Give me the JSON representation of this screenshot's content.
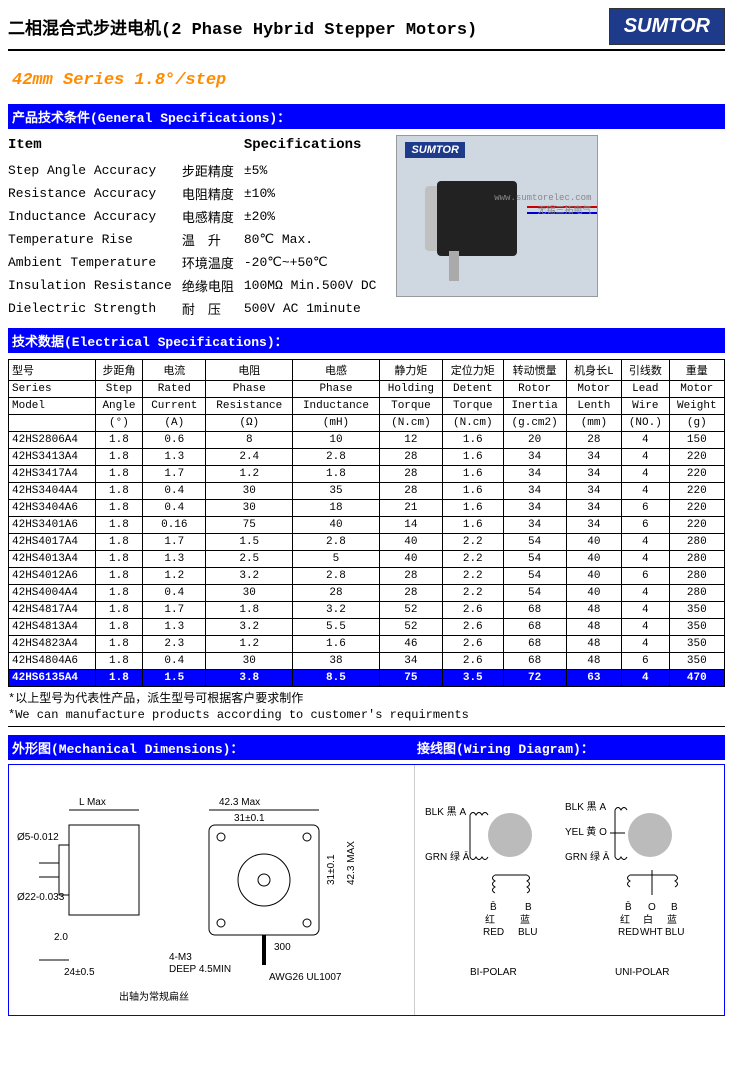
{
  "header": {
    "title_cn": "二相混合式步进电机",
    "title_en": "(2 Phase Hybrid Stepper Motors)",
    "logo": "SUMTOR"
  },
  "series_bar": "42mm Series 1.8°/step",
  "sections": {
    "general": "产品技术条件(General Specifications)：",
    "electrical": "技术数据(Electrical Specifications)：",
    "mech": "外形图(Mechanical Dimensions)：",
    "wiring": "接线图(Wiring Diagram)："
  },
  "general_head": {
    "item": "Item",
    "spec": "Specifications"
  },
  "general": [
    {
      "en": "Step Angle Accuracy",
      "cn": "步距精度",
      "val": "±5%"
    },
    {
      "en": "Resistance Accuracy",
      "cn": "电阻精度",
      "val": "±10%"
    },
    {
      "en": "Inductance Accuracy",
      "cn": "电感精度",
      "val": "±20%"
    },
    {
      "en": "Temperature Rise",
      "cn": "温　升",
      "val": "80℃ Max."
    },
    {
      "en": "Ambient Temperature",
      "cn": "环境温度",
      "val": "-20℃~+50℃"
    },
    {
      "en": "Insulation Resistance",
      "cn": "绝缘电阻",
      "val": "100MΩ Min.500V DC"
    },
    {
      "en": "Dielectric Strength",
      "cn": "耐　压",
      "val": "500V AC 1minute"
    }
  ],
  "product_img": {
    "logo": "SUMTOR",
    "wm1": "www.sumtorelec.com",
    "wm2": "无锡三拓电气"
  },
  "columns": [
    {
      "cn": "型号",
      "en1": "Series",
      "en2": "Model",
      "unit": ""
    },
    {
      "cn": "步距角",
      "en1": "Step",
      "en2": "Angle",
      "unit": "(°)"
    },
    {
      "cn": "电流",
      "en1": "Rated",
      "en2": "Current",
      "unit": "(A)"
    },
    {
      "cn": "电阻",
      "en1": "Phase",
      "en2": "Resistance",
      "unit": "(Ω)"
    },
    {
      "cn": "电感",
      "en1": "Phase",
      "en2": "Inductance",
      "unit": "(mH)"
    },
    {
      "cn": "静力矩",
      "en1": "Holding",
      "en2": "Torque",
      "unit": "(N.cm)"
    },
    {
      "cn": "定位力矩",
      "en1": "Detent",
      "en2": "Torque",
      "unit": "(N.cm)"
    },
    {
      "cn": "转动惯量",
      "en1": "Rotor",
      "en2": "Inertia",
      "unit": "(g.cm2)"
    },
    {
      "cn": "机身长L",
      "en1": "Motor",
      "en2": "Lenth",
      "unit": "(mm)"
    },
    {
      "cn": "引线数",
      "en1": "Lead",
      "en2": "Wire",
      "unit": "(NO.)"
    },
    {
      "cn": "重量",
      "en1": "Motor",
      "en2": "Weight",
      "unit": "(g)"
    }
  ],
  "rows": [
    [
      "42HS2806A4",
      "1.8",
      "0.6",
      "8",
      "10",
      "12",
      "1.6",
      "20",
      "28",
      "4",
      "150"
    ],
    [
      "42HS3413A4",
      "1.8",
      "1.3",
      "2.4",
      "2.8",
      "28",
      "1.6",
      "34",
      "34",
      "4",
      "220"
    ],
    [
      "42HS3417A4",
      "1.8",
      "1.7",
      "1.2",
      "1.8",
      "28",
      "1.6",
      "34",
      "34",
      "4",
      "220"
    ],
    [
      "42HS3404A4",
      "1.8",
      "0.4",
      "30",
      "35",
      "28",
      "1.6",
      "34",
      "34",
      "4",
      "220"
    ],
    [
      "42HS3404A6",
      "1.8",
      "0.4",
      "30",
      "18",
      "21",
      "1.6",
      "34",
      "34",
      "6",
      "220"
    ],
    [
      "42HS3401A6",
      "1.8",
      "0.16",
      "75",
      "40",
      "14",
      "1.6",
      "34",
      "34",
      "6",
      "220"
    ],
    [
      "42HS4017A4",
      "1.8",
      "1.7",
      "1.5",
      "2.8",
      "40",
      "2.2",
      "54",
      "40",
      "4",
      "280"
    ],
    [
      "42HS4013A4",
      "1.8",
      "1.3",
      "2.5",
      "5",
      "40",
      "2.2",
      "54",
      "40",
      "4",
      "280"
    ],
    [
      "42HS4012A6",
      "1.8",
      "1.2",
      "3.2",
      "2.8",
      "28",
      "2.2",
      "54",
      "40",
      "6",
      "280"
    ],
    [
      "42HS4004A4",
      "1.8",
      "0.4",
      "30",
      "28",
      "28",
      "2.2",
      "54",
      "40",
      "4",
      "280"
    ],
    [
      "42HS4817A4",
      "1.8",
      "1.7",
      "1.8",
      "3.2",
      "52",
      "2.6",
      "68",
      "48",
      "4",
      "350"
    ],
    [
      "42HS4813A4",
      "1.8",
      "1.3",
      "3.2",
      "5.5",
      "52",
      "2.6",
      "68",
      "48",
      "4",
      "350"
    ],
    [
      "42HS4823A4",
      "1.8",
      "2.3",
      "1.2",
      "1.6",
      "46",
      "2.6",
      "68",
      "48",
      "4",
      "350"
    ],
    [
      "42HS4804A6",
      "1.8",
      "0.4",
      "30",
      "38",
      "34",
      "2.6",
      "68",
      "48",
      "6",
      "350"
    ]
  ],
  "row_hi": [
    "42HS6135A4",
    "1.8",
    "1.5",
    "3.8",
    "8.5",
    "75",
    "3.5",
    "72",
    "63",
    "4",
    "470"
  ],
  "notes": {
    "cn": "*以上型号为代表性产品，派生型号可根据客户要求制作",
    "en": "*We can manufacture products according to customer's requirments"
  },
  "mech": {
    "lmax": "L Max",
    "d5": "Ø5-0.012",
    "d22": "Ø22-0.033",
    "t2": "2.0",
    "t24": "24±0.5",
    "t423": "42.3 Max",
    "t31": "31±0.1",
    "t310": "31±0.1",
    "t423v": "42.3 MAX",
    "m3": "4-M3",
    "deep": "DEEP 4.5MIN",
    "t300": "300",
    "awg": "AWG26 UL1007",
    "shaft_note": "出轴为常规扁丝"
  },
  "wiring": {
    "blk": "BLK 黑 A",
    "blk2": "BLK 黑 A",
    "grn": "GRN 绿 Ā",
    "grn2": "GRN 绿 Ā",
    "yel": "YEL 黄 O",
    "b": "B̄",
    "o": "O",
    "bb": "B",
    "red": "红\nRED",
    "wht": "白\nWHT",
    "blu": "蓝\nBLU",
    "bipolar": "BI-POLAR",
    "unipolar": "UNI-POLAR"
  },
  "colors": {
    "bar_blue": "#0000ff",
    "logo_blue": "#1e3a8a",
    "series_orange": "#ff8c00"
  }
}
